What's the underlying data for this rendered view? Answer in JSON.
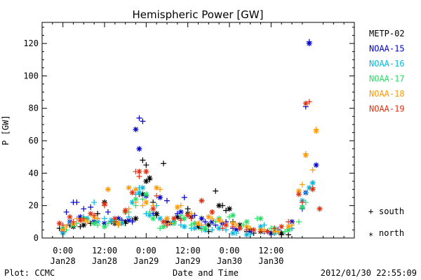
{
  "chart_data": {
    "type": "scatter",
    "title": "Hemispheric Power [GW]",
    "xlabel": "Date and Time",
    "ylabel": "P [GW]",
    "footer_left": "Plot: CCMC",
    "footer_right": "2012/01/30 22:55:09",
    "x_unit": "hours since 2012-01-28 00:00",
    "xlim": [
      -6,
      84
    ],
    "ylim": [
      0,
      133
    ],
    "x_ticks": [
      {
        "x": 0,
        "line1": "0:00",
        "line2": "Jan28"
      },
      {
        "x": 12,
        "line1": "12:00",
        "line2": "Jan28"
      },
      {
        "x": 24,
        "line1": "0:00",
        "line2": "Jan29"
      },
      {
        "x": 36,
        "line1": "12:00",
        "line2": "Jan29"
      },
      {
        "x": 48,
        "line1": "0:00",
        "line2": "Jan30"
      },
      {
        "x": 60,
        "line1": "12:00",
        "line2": "Jan30"
      }
    ],
    "y_ticks": [
      0,
      20,
      40,
      60,
      80,
      100,
      120
    ],
    "marker_legend": [
      {
        "symbol": "+",
        "label": "south"
      },
      {
        "symbol": "*",
        "label": "north"
      }
    ],
    "series": [
      {
        "name": "METP-02",
        "color": "#000000",
        "south": [
          [
            -1,
            6
          ],
          [
            2,
            8
          ],
          [
            5,
            7
          ],
          [
            8,
            9
          ],
          [
            10,
            15
          ],
          [
            12,
            22
          ],
          [
            14,
            10
          ],
          [
            16,
            8
          ],
          [
            18,
            9
          ],
          [
            20,
            11
          ],
          [
            22,
            27
          ],
          [
            23,
            48
          ],
          [
            24,
            45
          ],
          [
            25,
            36
          ],
          [
            26,
            22
          ],
          [
            27,
            14
          ],
          [
            29,
            46
          ],
          [
            30,
            8
          ],
          [
            32,
            10
          ],
          [
            34,
            12
          ],
          [
            36,
            18
          ],
          [
            38,
            9
          ],
          [
            40,
            6
          ],
          [
            42,
            4
          ],
          [
            44,
            29
          ],
          [
            46,
            20
          ],
          [
            47,
            17
          ],
          [
            49,
            10
          ],
          [
            51,
            6
          ],
          [
            53,
            4
          ],
          [
            55,
            3
          ],
          [
            57,
            5
          ],
          [
            59,
            4
          ],
          [
            61,
            3
          ],
          [
            63,
            2
          ],
          [
            65,
            2
          ]
        ],
        "north": [
          [
            0,
            5
          ],
          [
            3,
            7
          ],
          [
            6,
            8
          ],
          [
            9,
            10
          ],
          [
            12,
            22
          ],
          [
            15,
            9
          ],
          [
            18,
            10
          ],
          [
            21,
            12
          ],
          [
            23,
            27
          ],
          [
            24,
            35
          ],
          [
            25,
            37
          ],
          [
            27,
            15
          ],
          [
            30,
            10
          ],
          [
            33,
            13
          ],
          [
            36,
            15
          ],
          [
            39,
            7
          ],
          [
            42,
            8
          ],
          [
            45,
            20
          ],
          [
            48,
            18
          ],
          [
            51,
            8
          ],
          [
            54,
            5
          ],
          [
            57,
            4
          ],
          [
            60,
            3
          ],
          [
            63,
            3
          ]
        ]
      },
      {
        "name": "NOAA-15",
        "color": "#0000cc",
        "south": [
          [
            1,
            16
          ],
          [
            3,
            22
          ],
          [
            4,
            22
          ],
          [
            6,
            18
          ],
          [
            8,
            19
          ],
          [
            10,
            12
          ],
          [
            13,
            16
          ],
          [
            17,
            11
          ],
          [
            20,
            10
          ],
          [
            22,
            74
          ],
          [
            23,
            72
          ],
          [
            26,
            15
          ],
          [
            30,
            23
          ],
          [
            33,
            15
          ],
          [
            35,
            25
          ],
          [
            38,
            14
          ],
          [
            41,
            10
          ],
          [
            44,
            8
          ],
          [
            47,
            10
          ],
          [
            49,
            6
          ],
          [
            53,
            5
          ],
          [
            58,
            4
          ],
          [
            62,
            5
          ],
          [
            66,
            6
          ],
          [
            69,
            18
          ],
          [
            70,
            81
          ],
          [
            71,
            121
          ]
        ],
        "north": [
          [
            0,
            4
          ],
          [
            2,
            10
          ],
          [
            5,
            13
          ],
          [
            9,
            10
          ],
          [
            12,
            9
          ],
          [
            16,
            12
          ],
          [
            19,
            11
          ],
          [
            21,
            67
          ],
          [
            22,
            55
          ],
          [
            24,
            26
          ],
          [
            28,
            25
          ],
          [
            31,
            9
          ],
          [
            34,
            16
          ],
          [
            37,
            13
          ],
          [
            40,
            12
          ],
          [
            43,
            10
          ],
          [
            46,
            9
          ],
          [
            50,
            5
          ],
          [
            54,
            4
          ],
          [
            60,
            3
          ],
          [
            66,
            10
          ],
          [
            69,
            19
          ],
          [
            70,
            28
          ],
          [
            71,
            120
          ],
          [
            73,
            45
          ]
        ]
      },
      {
        "name": "NOAA-16",
        "color": "#00b8e0",
        "south": [
          [
            2,
            10
          ],
          [
            6,
            13
          ],
          [
            9,
            22
          ],
          [
            12,
            12
          ],
          [
            15,
            10
          ],
          [
            19,
            13
          ],
          [
            21,
            27
          ],
          [
            22,
            31
          ],
          [
            24,
            15
          ],
          [
            27,
            20
          ],
          [
            30,
            12
          ],
          [
            34,
            8
          ],
          [
            37,
            6
          ],
          [
            40,
            7
          ],
          [
            43,
            5
          ],
          [
            47,
            5
          ],
          [
            50,
            3
          ],
          [
            54,
            2
          ],
          [
            58,
            8
          ],
          [
            62,
            4
          ],
          [
            66,
            6
          ],
          [
            70,
            28
          ],
          [
            72,
            34
          ]
        ],
        "north": [
          [
            0,
            3
          ],
          [
            3,
            8
          ],
          [
            7,
            12
          ],
          [
            10,
            10
          ],
          [
            14,
            11
          ],
          [
            17,
            9
          ],
          [
            20,
            22
          ],
          [
            22,
            28
          ],
          [
            23,
            31
          ],
          [
            25,
            14
          ],
          [
            28,
            12
          ],
          [
            32,
            10
          ],
          [
            35,
            7
          ],
          [
            38,
            6
          ],
          [
            41,
            5
          ],
          [
            45,
            6
          ],
          [
            49,
            3
          ],
          [
            53,
            2
          ],
          [
            57,
            7
          ],
          [
            61,
            3
          ],
          [
            65,
            5
          ],
          [
            69,
            23
          ],
          [
            71,
            31
          ],
          [
            72,
            34
          ]
        ]
      },
      {
        "name": "NOAA-17",
        "color": "#22e060",
        "south": [
          [
            1,
            5
          ],
          [
            4,
            9
          ],
          [
            7,
            11
          ],
          [
            10,
            8
          ],
          [
            13,
            9
          ],
          [
            16,
            10
          ],
          [
            19,
            16
          ],
          [
            21,
            20
          ],
          [
            23,
            24
          ],
          [
            25,
            16
          ],
          [
            28,
            6
          ],
          [
            31,
            9
          ],
          [
            34,
            14
          ],
          [
            37,
            8
          ],
          [
            40,
            5
          ],
          [
            44,
            10
          ],
          [
            48,
            13
          ],
          [
            52,
            8
          ],
          [
            56,
            12
          ],
          [
            60,
            6
          ],
          [
            64,
            4
          ],
          [
            68,
            10
          ],
          [
            70,
            22
          ]
        ],
        "north": [
          [
            0,
            6
          ],
          [
            3,
            8
          ],
          [
            6,
            12
          ],
          [
            9,
            9
          ],
          [
            12,
            7
          ],
          [
            15,
            10
          ],
          [
            18,
            16
          ],
          [
            21,
            24
          ],
          [
            24,
            27
          ],
          [
            26,
            12
          ],
          [
            29,
            7
          ],
          [
            32,
            9
          ],
          [
            35,
            12
          ],
          [
            38,
            9
          ],
          [
            41,
            6
          ],
          [
            45,
            12
          ],
          [
            49,
            14
          ],
          [
            53,
            10
          ],
          [
            57,
            12
          ],
          [
            61,
            6
          ],
          [
            65,
            5
          ],
          [
            69,
            19
          ]
        ]
      },
      {
        "name": "NOAA-18",
        "color": "#ff9900",
        "south": [
          [
            1,
            7
          ],
          [
            4,
            12
          ],
          [
            7,
            10
          ],
          [
            10,
            12
          ],
          [
            13,
            30
          ],
          [
            16,
            8
          ],
          [
            19,
            18
          ],
          [
            21,
            22
          ],
          [
            23,
            20
          ],
          [
            26,
            20
          ],
          [
            28,
            30
          ],
          [
            31,
            9
          ],
          [
            34,
            20
          ],
          [
            37,
            15
          ],
          [
            40,
            8
          ],
          [
            43,
            12
          ],
          [
            46,
            10
          ],
          [
            50,
            8
          ],
          [
            54,
            6
          ],
          [
            58,
            5
          ],
          [
            62,
            4
          ],
          [
            66,
            8
          ],
          [
            69,
            33
          ],
          [
            70,
            52
          ],
          [
            72,
            42
          ],
          [
            73,
            67
          ]
        ],
        "north": [
          [
            0,
            5
          ],
          [
            3,
            9
          ],
          [
            6,
            11
          ],
          [
            9,
            13
          ],
          [
            13,
            30
          ],
          [
            16,
            9
          ],
          [
            19,
            31
          ],
          [
            21,
            30
          ],
          [
            24,
            22
          ],
          [
            27,
            31
          ],
          [
            30,
            12
          ],
          [
            33,
            19
          ],
          [
            36,
            14
          ],
          [
            39,
            9
          ],
          [
            42,
            13
          ],
          [
            45,
            11
          ],
          [
            49,
            9
          ],
          [
            53,
            7
          ],
          [
            57,
            5
          ],
          [
            61,
            4
          ],
          [
            65,
            7
          ],
          [
            68,
            29
          ],
          [
            70,
            51
          ],
          [
            73,
            66
          ]
        ]
      },
      {
        "name": "NOAA-19",
        "color": "#e03010",
        "south": [
          [
            0,
            8
          ],
          [
            3,
            10
          ],
          [
            6,
            12
          ],
          [
            9,
            14
          ],
          [
            12,
            20
          ],
          [
            15,
            10
          ],
          [
            18,
            16
          ],
          [
            21,
            41
          ],
          [
            22,
            38
          ],
          [
            24,
            41
          ],
          [
            27,
            26
          ],
          [
            30,
            8
          ],
          [
            34,
            11
          ],
          [
            37,
            12
          ],
          [
            40,
            23
          ],
          [
            43,
            16
          ],
          [
            46,
            6
          ],
          [
            49,
            7
          ],
          [
            53,
            5
          ],
          [
            57,
            4
          ],
          [
            61,
            6
          ],
          [
            65,
            10
          ],
          [
            69,
            22
          ],
          [
            71,
            84
          ],
          [
            72,
            31
          ],
          [
            74,
            18
          ]
        ],
        "north": [
          [
            -1,
            9
          ],
          [
            2,
            13
          ],
          [
            5,
            11
          ],
          [
            8,
            15
          ],
          [
            12,
            21
          ],
          [
            15,
            12
          ],
          [
            18,
            17
          ],
          [
            20,
            28
          ],
          [
            22,
            41
          ],
          [
            24,
            41
          ],
          [
            26,
            18
          ],
          [
            29,
            10
          ],
          [
            32,
            12
          ],
          [
            36,
            14
          ],
          [
            40,
            23
          ],
          [
            43,
            16
          ],
          [
            47,
            8
          ],
          [
            51,
            6
          ],
          [
            55,
            5
          ],
          [
            59,
            4
          ],
          [
            63,
            7
          ],
          [
            68,
            27
          ],
          [
            70,
            83
          ],
          [
            72,
            30
          ],
          [
            74,
            18
          ]
        ]
      }
    ]
  }
}
